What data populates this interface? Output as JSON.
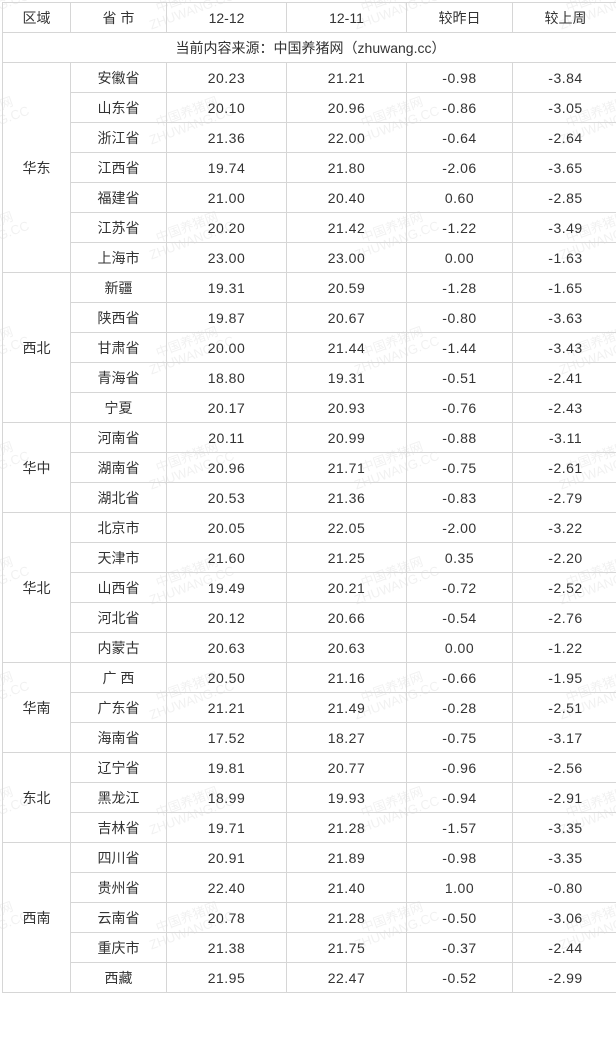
{
  "columns": [
    "区域",
    "省 市",
    "12-12",
    "12-11",
    "较昨日",
    "较上周"
  ],
  "source_line": "当前内容来源：中国养猪网（zhuwang.cc）",
  "watermark_lines": [
    "中国养猪网",
    "ZHUWANG.CC"
  ],
  "colors": {
    "border": "#d6d6d6",
    "neg": "#2e9a3a",
    "pos": "#d83a2b",
    "text": "#333333",
    "background": "#ffffff"
  },
  "regions": [
    {
      "name": "华东",
      "rows": [
        {
          "prov": "安徽省",
          "d1": "20.23",
          "d2": "21.21",
          "dd": "-0.98",
          "dw": "-3.84"
        },
        {
          "prov": "山东省",
          "d1": "20.10",
          "d2": "20.96",
          "dd": "-0.86",
          "dw": "-3.05"
        },
        {
          "prov": "浙江省",
          "d1": "21.36",
          "d2": "22.00",
          "dd": "-0.64",
          "dw": "-2.64"
        },
        {
          "prov": "江西省",
          "d1": "19.74",
          "d2": "21.80",
          "dd": "-2.06",
          "dw": "-3.65"
        },
        {
          "prov": "福建省",
          "d1": "21.00",
          "d2": "20.40",
          "dd": "0.60",
          "dw": "-2.85"
        },
        {
          "prov": "江苏省",
          "d1": "20.20",
          "d2": "21.42",
          "dd": "-1.22",
          "dw": "-3.49"
        },
        {
          "prov": "上海市",
          "d1": "23.00",
          "d2": "23.00",
          "dd": "0.00",
          "dw": "-1.63"
        }
      ]
    },
    {
      "name": "西北",
      "rows": [
        {
          "prov": "新疆",
          "d1": "19.31",
          "d2": "20.59",
          "dd": "-1.28",
          "dw": "-1.65"
        },
        {
          "prov": "陕西省",
          "d1": "19.87",
          "d2": "20.67",
          "dd": "-0.80",
          "dw": "-3.63"
        },
        {
          "prov": "甘肃省",
          "d1": "20.00",
          "d2": "21.44",
          "dd": "-1.44",
          "dw": "-3.43"
        },
        {
          "prov": "青海省",
          "d1": "18.80",
          "d2": "19.31",
          "dd": "-0.51",
          "dw": "-2.41"
        },
        {
          "prov": "宁夏",
          "d1": "20.17",
          "d2": "20.93",
          "dd": "-0.76",
          "dw": "-2.43"
        }
      ]
    },
    {
      "name": "华中",
      "rows": [
        {
          "prov": "河南省",
          "d1": "20.11",
          "d2": "20.99",
          "dd": "-0.88",
          "dw": "-3.11"
        },
        {
          "prov": "湖南省",
          "d1": "20.96",
          "d2": "21.71",
          "dd": "-0.75",
          "dw": "-2.61"
        },
        {
          "prov": "湖北省",
          "d1": "20.53",
          "d2": "21.36",
          "dd": "-0.83",
          "dw": "-2.79"
        }
      ]
    },
    {
      "name": "华北",
      "rows": [
        {
          "prov": "北京市",
          "d1": "20.05",
          "d2": "22.05",
          "dd": "-2.00",
          "dw": "-3.22"
        },
        {
          "prov": "天津市",
          "d1": "21.60",
          "d2": "21.25",
          "dd": "0.35",
          "dw": "-2.20"
        },
        {
          "prov": "山西省",
          "d1": "19.49",
          "d2": "20.21",
          "dd": "-0.72",
          "dw": "-2.52"
        },
        {
          "prov": "河北省",
          "d1": "20.12",
          "d2": "20.66",
          "dd": "-0.54",
          "dw": "-2.76"
        },
        {
          "prov": "内蒙古",
          "d1": "20.63",
          "d2": "20.63",
          "dd": "0.00",
          "dw": "-1.22"
        }
      ]
    },
    {
      "name": "华南",
      "rows": [
        {
          "prov": "广 西",
          "d1": "20.50",
          "d2": "21.16",
          "dd": "-0.66",
          "dw": "-1.95"
        },
        {
          "prov": "广东省",
          "d1": "21.21",
          "d2": "21.49",
          "dd": "-0.28",
          "dw": "-2.51"
        },
        {
          "prov": "海南省",
          "d1": "17.52",
          "d2": "18.27",
          "dd": "-0.75",
          "dw": "-3.17"
        }
      ]
    },
    {
      "name": "东北",
      "rows": [
        {
          "prov": "辽宁省",
          "d1": "19.81",
          "d2": "20.77",
          "dd": "-0.96",
          "dw": "-2.56"
        },
        {
          "prov": "黑龙江",
          "d1": "18.99",
          "d2": "19.93",
          "dd": "-0.94",
          "dw": "-2.91"
        },
        {
          "prov": "吉林省",
          "d1": "19.71",
          "d2": "21.28",
          "dd": "-1.57",
          "dw": "-3.35"
        }
      ]
    },
    {
      "name": "西南",
      "rows": [
        {
          "prov": "四川省",
          "d1": "20.91",
          "d2": "21.89",
          "dd": "-0.98",
          "dw": "-3.35"
        },
        {
          "prov": "贵州省",
          "d1": "22.40",
          "d2": "21.40",
          "dd": "1.00",
          "dw": "-0.80"
        },
        {
          "prov": "云南省",
          "d1": "20.78",
          "d2": "21.28",
          "dd": "-0.50",
          "dw": "-3.06"
        },
        {
          "prov": "重庆市",
          "d1": "21.38",
          "d2": "21.75",
          "dd": "-0.37",
          "dw": "-2.44"
        },
        {
          "prov": "西藏",
          "d1": "21.95",
          "d2": "22.47",
          "dd": "-0.52",
          "dw": "-2.99"
        }
      ]
    }
  ]
}
